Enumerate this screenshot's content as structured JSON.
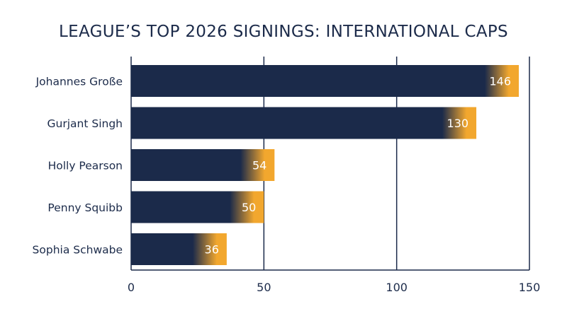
{
  "chart_data": {
    "type": "bar",
    "orientation": "horizontal",
    "title": "LEAGUE’S TOP 2026 SIGNINGS: INTERNATIONAL CAPS",
    "categories": [
      "Johannes Große",
      "Gurjant Singh",
      "Holly Pearson",
      "Penny Squibb",
      "Sophia Schwabe"
    ],
    "values": [
      146,
      130,
      54,
      50,
      36
    ],
    "xlabel": "",
    "ylabel": "",
    "xlim": [
      0,
      150
    ],
    "xticks": [
      0,
      50,
      100,
      150
    ],
    "grid": true,
    "legend": "none",
    "data_labels": true
  },
  "colors": {
    "bar": "#1b2a4a",
    "bar_accent": "#f2a72e",
    "text": "#1c2b4a",
    "grid": "#1b2a4a"
  }
}
